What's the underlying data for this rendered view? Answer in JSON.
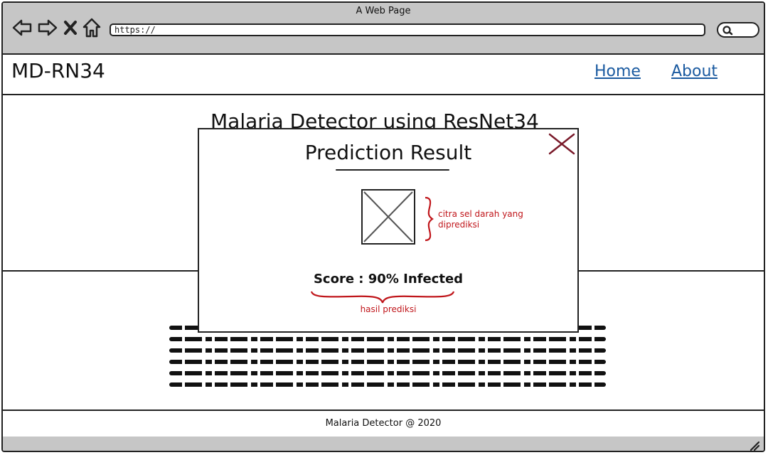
{
  "browser": {
    "window_title": "A Web Page",
    "url": "https://"
  },
  "site": {
    "logo": "MD-RN34",
    "nav": [
      {
        "label": "Home"
      },
      {
        "label": "About"
      }
    ],
    "heading": "Malaria Detector using ResNet34",
    "footer": "Malaria Detector @ 2020"
  },
  "modal": {
    "title": "Prediction Result",
    "image_note": "citra sel darah yang diprediksi",
    "score": "Score : 90% Infected",
    "score_note": "hasil prediksi"
  },
  "colors": {
    "annotation": "#c0161b",
    "link": "#1a5aa0",
    "close": "#7a1a2a",
    "chrome": "#c6c6c6"
  },
  "icons": [
    "back-arrow-icon",
    "forward-arrow-icon",
    "close-x-icon",
    "home-icon",
    "search-icon",
    "image-placeholder-icon",
    "resize-grip-icon"
  ]
}
